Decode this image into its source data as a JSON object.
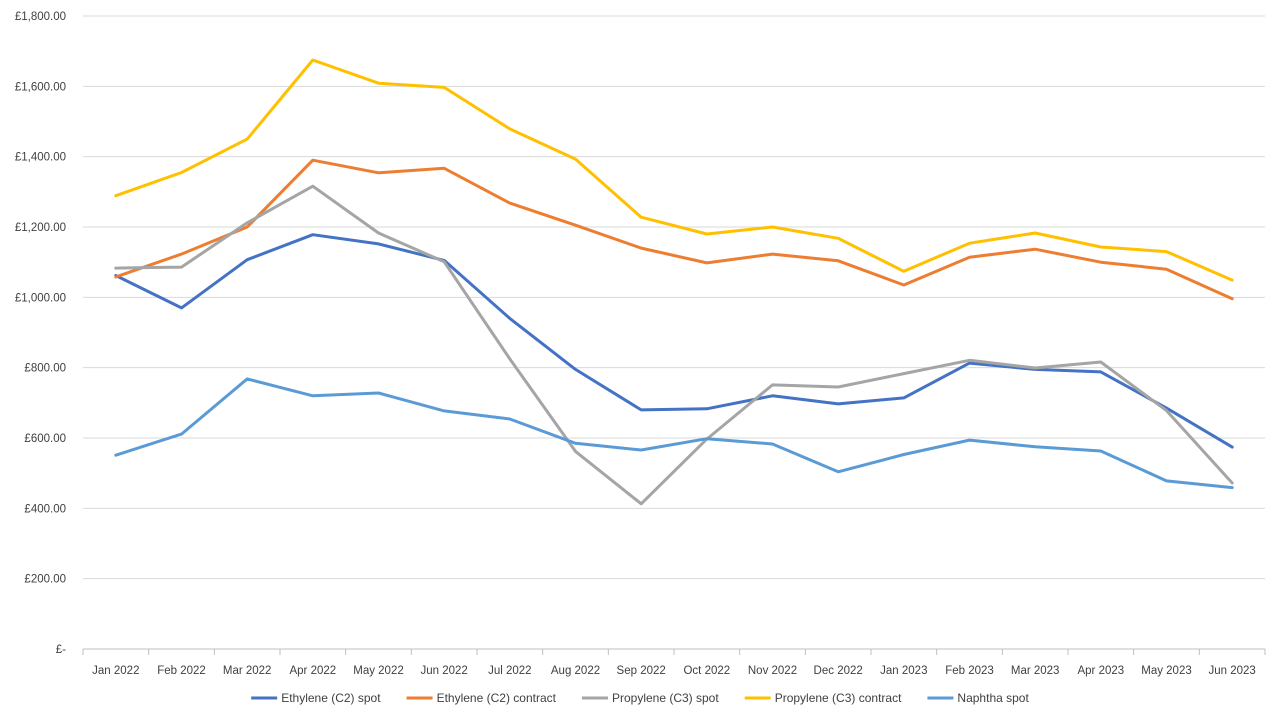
{
  "chart_data": {
    "type": "line",
    "title": "",
    "xlabel": "",
    "ylabel": "",
    "ylim": [
      0,
      1800
    ],
    "y_ticks": [
      {
        "value": 0,
        "label": "£-"
      },
      {
        "value": 200,
        "label": "£200.00"
      },
      {
        "value": 400,
        "label": "£400.00"
      },
      {
        "value": 600,
        "label": "£600.00"
      },
      {
        "value": 800,
        "label": "£800.00"
      },
      {
        "value": 1000,
        "label": "£1,000.00"
      },
      {
        "value": 1200,
        "label": "£1,200.00"
      },
      {
        "value": 1400,
        "label": "£1,400.00"
      },
      {
        "value": 1600,
        "label": "£1,600.00"
      },
      {
        "value": 1800,
        "label": "£1,800.00"
      }
    ],
    "categories": [
      "Jan 2022",
      "Feb 2022",
      "Mar 2022",
      "Apr 2022",
      "May 2022",
      "Jun 2022",
      "Jul 2022",
      "Aug 2022",
      "Sep 2022",
      "Oct 2022",
      "Nov 2022",
      "Dec 2022",
      "Jan 2023",
      "Feb 2023",
      "Mar 2023",
      "Apr 2023",
      "May 2023",
      "Jun 2023"
    ],
    "grid": true,
    "legend_position": "bottom",
    "series": [
      {
        "name": "Ethylene (C2) spot",
        "color": "#4472C4",
        "values": [
          1062,
          970,
          1107,
          1178,
          1152,
          1105,
          940,
          795,
          680,
          683,
          720,
          697,
          714,
          813,
          795,
          788,
          685,
          574
        ]
      },
      {
        "name": "Ethylene (C2) contract",
        "color": "#ED7D31",
        "values": [
          1058,
          1123,
          1200,
          1390,
          1354,
          1367,
          1268,
          1205,
          1140,
          1098,
          1123,
          1104,
          1035,
          1114,
          1137,
          1100,
          1080,
          996
        ]
      },
      {
        "name": "Propylene (C3) spot",
        "color": "#A5A5A5",
        "values": [
          1083,
          1086,
          1212,
          1316,
          1183,
          1101,
          825,
          562,
          413,
          597,
          751,
          745,
          783,
          821,
          799,
          816,
          678,
          472
        ]
      },
      {
        "name": "Propylene (C3) contract",
        "color": "#FFC000",
        "values": [
          1289,
          1355,
          1450,
          1675,
          1609,
          1597,
          1479,
          1393,
          1228,
          1180,
          1200,
          1168,
          1074,
          1154,
          1183,
          1143,
          1130,
          1049
        ]
      },
      {
        "name": "Naphtha spot",
        "color": "#5B9BD5",
        "values": [
          551,
          611,
          768,
          720,
          728,
          677,
          654,
          585,
          566,
          598,
          583,
          504,
          553,
          594,
          575,
          563,
          478,
          459
        ]
      }
    ]
  }
}
